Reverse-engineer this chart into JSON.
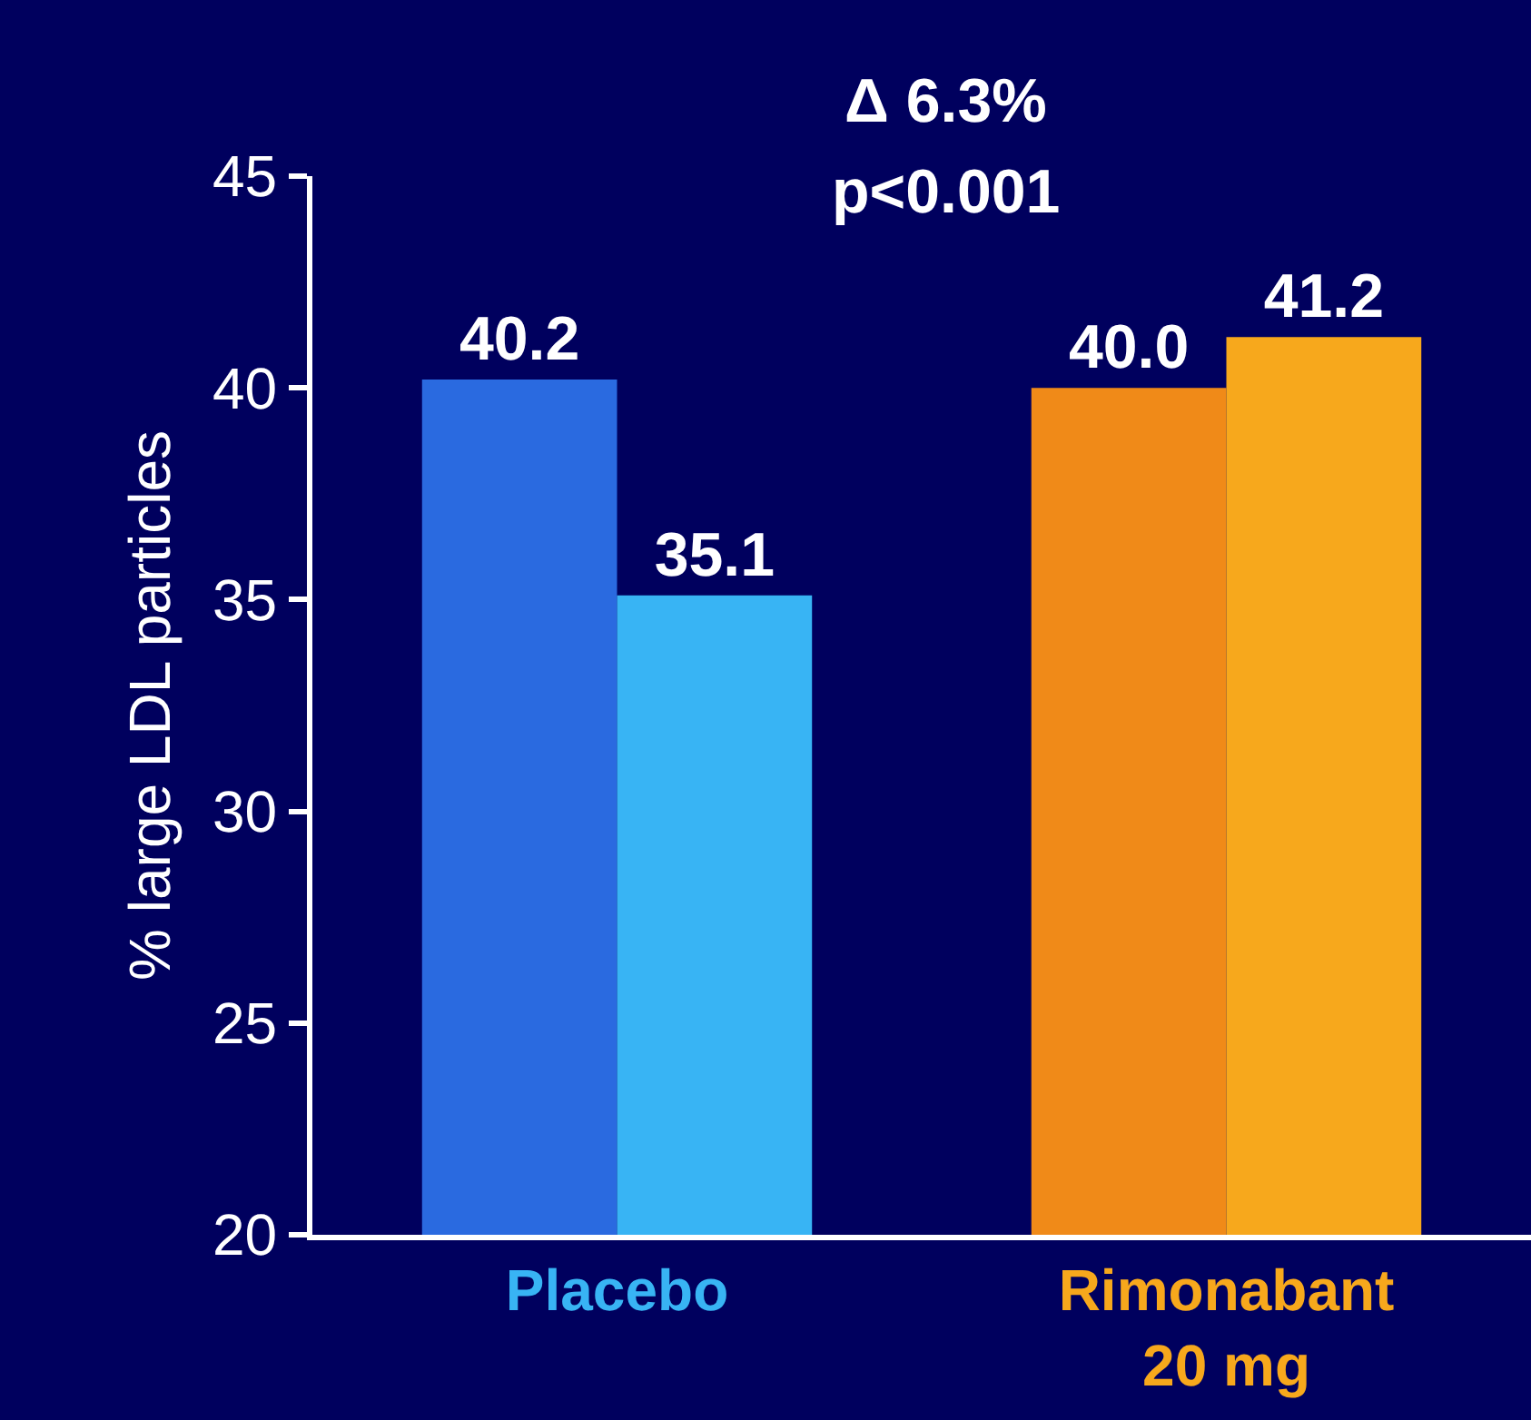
{
  "chart_data": {
    "type": "bar",
    "ylabel": "% large LDL particles",
    "categories": [
      "Placebo",
      "Rimonabant\n20 mg"
    ],
    "series": [
      {
        "colors": [
          "#2a6ae0",
          "#f08a18"
        ],
        "values": [
          40.2,
          40.0
        ],
        "value_labels": [
          "40.2",
          "40.0"
        ]
      },
      {
        "colors": [
          "#38b4f4",
          "#f7a81c"
        ],
        "values": [
          35.1,
          41.2
        ],
        "value_labels": [
          "35.1",
          "41.2"
        ]
      }
    ],
    "ylim": [
      20,
      45
    ],
    "yticks": [
      20,
      25,
      30,
      35,
      40,
      45
    ],
    "grid": false,
    "annotations": [
      "Δ 6.3%",
      "p<0.001"
    ]
  }
}
